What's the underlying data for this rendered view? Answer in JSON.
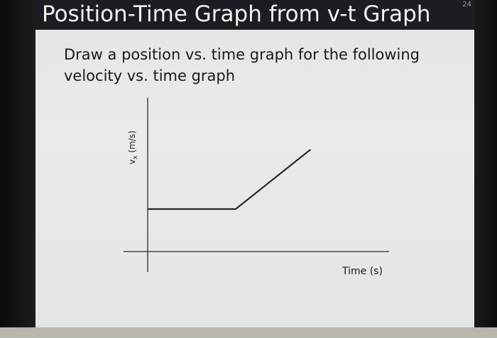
{
  "slide": {
    "title": "Position-Time Graph from v-t Graph",
    "number": "24",
    "instruction": "Draw a position vs. time graph for the following velocity vs. time graph"
  },
  "colors": {
    "title_bar": "#1c1d22",
    "slide_background": "#e6e7e9",
    "plot_line": "#2a2a2a"
  },
  "chart_data": {
    "type": "line",
    "title": "",
    "xlabel": "Time (s)",
    "ylabel": "vx (m/s)",
    "ylabel_main": "v",
    "ylabel_subscript": "x",
    "ylabel_unit": "(m/s)",
    "xlim": [
      0,
      10
    ],
    "ylim": [
      0,
      3
    ],
    "grid": false,
    "legend": "none",
    "series": [
      {
        "x": [
          0,
          4,
          7.4
        ],
        "y": [
          1,
          1,
          2.4
        ]
      }
    ]
  }
}
